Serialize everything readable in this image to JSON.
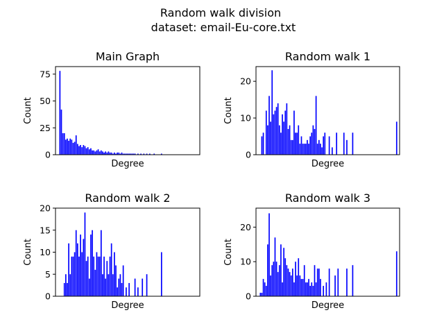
{
  "figure": {
    "suptitle_line1": "Random walk division",
    "suptitle_line2": "dataset: email-Eu-core.txt"
  },
  "chart_data": [
    {
      "type": "bar",
      "title": "Main Graph",
      "xlabel": "Degree",
      "ylabel": "Count",
      "ylim": [
        0,
        82
      ],
      "yticks": [
        0,
        25,
        50,
        75
      ],
      "xlim": [
        -2,
        96
      ],
      "bar_color": "#0000ff",
      "x": [
        1,
        2,
        3,
        4,
        5,
        6,
        7,
        8,
        9,
        10,
        11,
        12,
        13,
        14,
        15,
        16,
        17,
        18,
        19,
        20,
        21,
        22,
        23,
        24,
        25,
        26,
        27,
        28,
        29,
        30,
        31,
        32,
        33,
        34,
        35,
        36,
        37,
        38,
        39,
        40,
        41,
        42,
        43,
        44,
        45,
        46,
        47,
        48,
        49,
        50,
        51,
        52,
        54,
        56,
        58,
        60,
        62,
        65,
        70
      ],
      "values": [
        78,
        42,
        20,
        20,
        14,
        15,
        13,
        15,
        14,
        11,
        12,
        18,
        10,
        8,
        9,
        7,
        9,
        8,
        6,
        7,
        5,
        6,
        4,
        4,
        3,
        4,
        5,
        3,
        4,
        3,
        2,
        3,
        2,
        3,
        2,
        2,
        1,
        2,
        1,
        2,
        2,
        1,
        2,
        1,
        1,
        1,
        1,
        1,
        1,
        1,
        1,
        1,
        1,
        1,
        1,
        1,
        1,
        1,
        1
      ]
    },
    {
      "type": "bar",
      "title": "Random walk 1",
      "xlabel": "Degree",
      "ylabel": "Count",
      "ylim": [
        0,
        24
      ],
      "yticks": [
        0,
        10,
        20
      ],
      "xlim": [
        -2,
        96
      ],
      "bar_color": "#0000ff",
      "x": [
        2,
        3,
        5,
        6,
        7,
        8,
        9,
        10,
        11,
        12,
        13,
        14,
        15,
        16,
        17,
        18,
        19,
        20,
        21,
        22,
        23,
        24,
        25,
        26,
        27,
        28,
        29,
        30,
        31,
        32,
        33,
        34,
        35,
        36,
        37,
        38,
        39,
        40,
        41,
        42,
        43,
        44,
        45,
        48,
        50,
        53,
        58,
        60,
        64,
        94
      ],
      "values": [
        5,
        6,
        12,
        8,
        16,
        9,
        23,
        11,
        12,
        13,
        14,
        8,
        6,
        11,
        9,
        12,
        14,
        7,
        8,
        4,
        4,
        12,
        6,
        6,
        8,
        3,
        5,
        3,
        3,
        3,
        4,
        3,
        5,
        6,
        8,
        7,
        16,
        3,
        4,
        3,
        2,
        5,
        6,
        5,
        2,
        6,
        6,
        4,
        6,
        9
      ]
    },
    {
      "type": "bar",
      "title": "Random walk 2",
      "xlabel": "Degree",
      "ylabel": "Count",
      "ylim": [
        0,
        20
      ],
      "yticks": [
        0,
        5,
        10,
        15,
        20
      ],
      "xlim": [
        -2,
        96
      ],
      "bar_color": "#0000ff",
      "x": [
        4,
        5,
        6,
        7,
        8,
        9,
        10,
        11,
        12,
        13,
        14,
        15,
        16,
        17,
        18,
        19,
        20,
        21,
        22,
        23,
        24,
        25,
        26,
        27,
        28,
        29,
        30,
        31,
        32,
        33,
        34,
        35,
        36,
        37,
        38,
        39,
        40,
        41,
        42,
        43,
        44,
        46,
        48,
        52,
        54,
        57,
        60,
        70
      ],
      "values": [
        3,
        5,
        3,
        12,
        5,
        9,
        9,
        10,
        15,
        12,
        9,
        14,
        10,
        13,
        19,
        8,
        9,
        4,
        14,
        15,
        9,
        6,
        10,
        9,
        9,
        15,
        5,
        9,
        4,
        8,
        5,
        9,
        12,
        5,
        10,
        7,
        2,
        4,
        5,
        3,
        7,
        2,
        3,
        4,
        2,
        4,
        5,
        10
      ]
    },
    {
      "type": "bar",
      "title": "Random walk 3",
      "xlabel": "Degree",
      "ylabel": "Count",
      "ylim": [
        0,
        25.5
      ],
      "yticks": [
        0,
        10,
        20
      ],
      "xlim": [
        -2,
        96
      ],
      "bar_color": "#0000ff",
      "x": [
        1,
        2,
        3,
        4,
        5,
        6,
        7,
        8,
        9,
        10,
        11,
        12,
        13,
        14,
        15,
        16,
        17,
        18,
        19,
        20,
        21,
        22,
        23,
        24,
        25,
        26,
        27,
        28,
        29,
        30,
        31,
        32,
        33,
        34,
        35,
        36,
        37,
        38,
        39,
        40,
        41,
        42,
        44,
        46,
        48,
        52,
        54,
        60,
        64,
        94
      ],
      "values": [
        1,
        1,
        5,
        4,
        3,
        15,
        24,
        6,
        9,
        10,
        17,
        10,
        7,
        9,
        15,
        4,
        14,
        11,
        9,
        8,
        7,
        6,
        8,
        4,
        10,
        6,
        11,
        6,
        5,
        5,
        9,
        4,
        4,
        5,
        3,
        4,
        3,
        9,
        4,
        8,
        8,
        5,
        3,
        4,
        8,
        6,
        8,
        8,
        9,
        13
      ]
    }
  ]
}
